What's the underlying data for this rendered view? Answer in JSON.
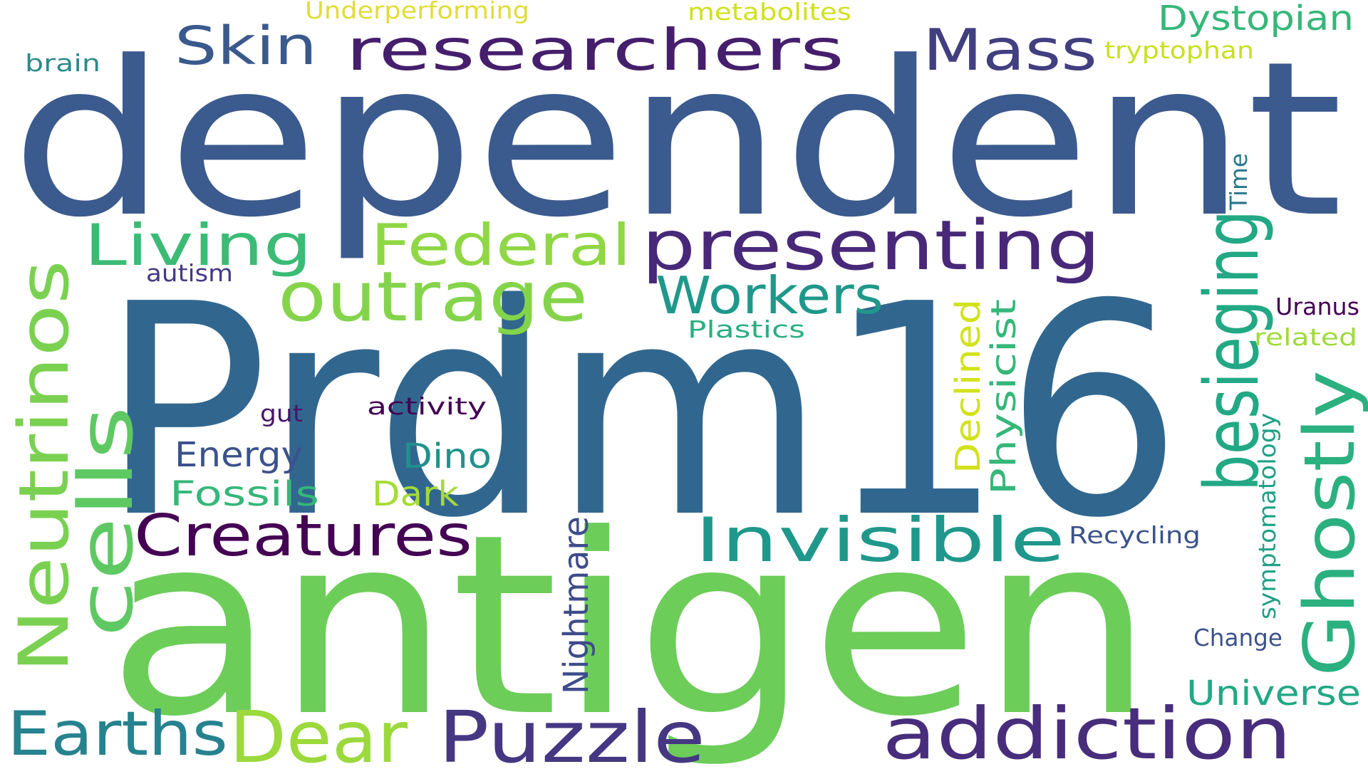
{
  "words": [
    {
      "text": "dependent",
      "color": "#3b5a8e"
    },
    {
      "text": "Prdm16",
      "color": "#31678f"
    },
    {
      "text": "antigen",
      "color": "#6ccd59"
    },
    {
      "text": "researchers",
      "color": "#451e6c"
    },
    {
      "text": "Mass",
      "color": "#413f80"
    },
    {
      "text": "Skin",
      "color": "#3a5a8c"
    },
    {
      "text": "Dystopian",
      "color": "#35b779"
    },
    {
      "text": "brain",
      "color": "#2c8a8c"
    },
    {
      "text": "Underperforming",
      "color": "#e1dd37"
    },
    {
      "text": "metabolites",
      "color": "#d0e11c"
    },
    {
      "text": "tryptophan",
      "color": "#c8e020"
    },
    {
      "text": "Time",
      "color": "#2a768e"
    },
    {
      "text": "Living",
      "color": "#3bbb75"
    },
    {
      "text": "Federal",
      "color": "#8fd744"
    },
    {
      "text": "presenting",
      "color": "#482878"
    },
    {
      "text": "besieging",
      "color": "#22a884"
    },
    {
      "text": "Ghostly",
      "color": "#2bb07f"
    },
    {
      "text": "outrage",
      "color": "#84d44b"
    },
    {
      "text": "Workers",
      "color": "#1f988b"
    },
    {
      "text": "autism",
      "color": "#443983"
    },
    {
      "text": "Neutrinos",
      "color": "#7ad151"
    },
    {
      "text": "cells",
      "color": "#5ec962"
    },
    {
      "text": "Uranus",
      "color": "#440154"
    },
    {
      "text": "related",
      "color": "#a0da39"
    },
    {
      "text": "Plastics",
      "color": "#29af7f"
    },
    {
      "text": "Declined",
      "color": "#d2e21b"
    },
    {
      "text": "Physicist",
      "color": "#35b779"
    },
    {
      "text": "gut",
      "color": "#481668"
    },
    {
      "text": "activity",
      "color": "#440154"
    },
    {
      "text": "Energy",
      "color": "#3b528b"
    },
    {
      "text": "Dino",
      "color": "#21918c"
    },
    {
      "text": "Fossils",
      "color": "#35b779"
    },
    {
      "text": "Dark",
      "color": "#a5db36"
    },
    {
      "text": "symptomatology",
      "color": "#1fa187"
    },
    {
      "text": "Creatures",
      "color": "#440154"
    },
    {
      "text": "Invisible",
      "color": "#1f988b"
    },
    {
      "text": "Recycling",
      "color": "#3b528b"
    },
    {
      "text": "Nightmare",
      "color": "#3e4c8a"
    },
    {
      "text": "Change",
      "color": "#3b528b"
    },
    {
      "text": "Universe",
      "color": "#22a884"
    },
    {
      "text": "Earths",
      "color": "#26828e"
    },
    {
      "text": "Dear",
      "color": "#9bd93c"
    },
    {
      "text": "Puzzle",
      "color": "#453781"
    },
    {
      "text": "addiction",
      "color": "#472d7b"
    }
  ]
}
